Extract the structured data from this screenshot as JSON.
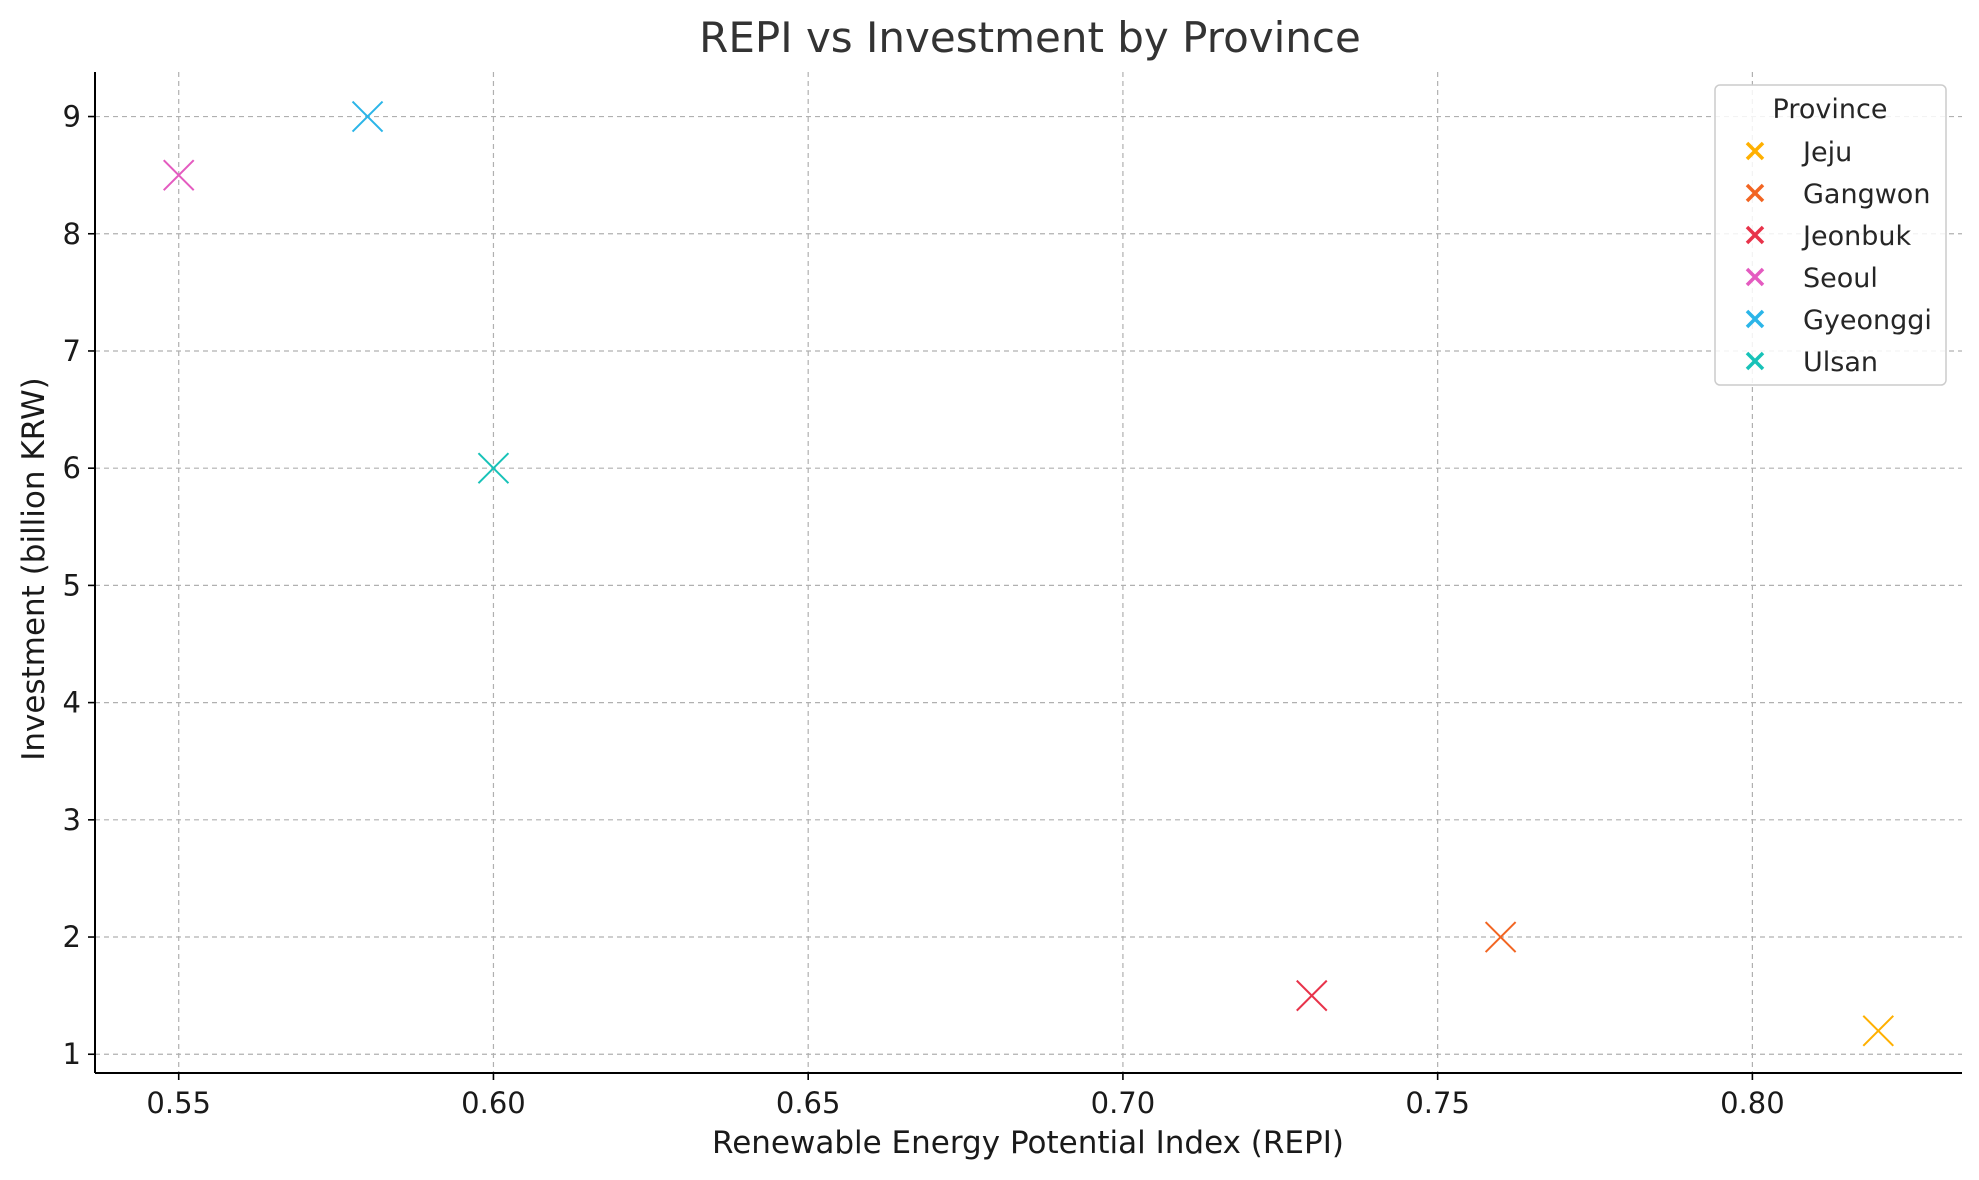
{
  "chart_data": {
    "type": "scatter",
    "title": "REPI vs Investment by Province",
    "xlabel": "Renewable Energy Potential Index (REPI)",
    "ylabel": "Investment (billion KRW)",
    "xlim": [
      0.5367,
      0.8333
    ],
    "ylim": [
      0.84,
      9.38
    ],
    "xticks": [
      "0.55",
      "0.60",
      "0.65",
      "0.70",
      "0.75",
      "0.80"
    ],
    "yticks": [
      "1",
      "2",
      "3",
      "4",
      "5",
      "6",
      "7",
      "8",
      "9"
    ],
    "grid": true,
    "marker": "x",
    "legend": {
      "title": "Province",
      "placement": "top-right"
    },
    "series": [
      {
        "name": "Jeju",
        "color": "#FFB000",
        "points": [
          {
            "x": 0.82,
            "y": 1.2
          }
        ]
      },
      {
        "name": "Gangwon",
        "color": "#F26522",
        "points": [
          {
            "x": 0.76,
            "y": 2.0
          }
        ]
      },
      {
        "name": "Jeonbuk",
        "color": "#E8334A",
        "points": [
          {
            "x": 0.73,
            "y": 1.5
          }
        ]
      },
      {
        "name": "Seoul",
        "color": "#E45BC0",
        "points": [
          {
            "x": 0.55,
            "y": 8.5
          }
        ]
      },
      {
        "name": "Gyeonggi",
        "color": "#2BB5E8",
        "points": [
          {
            "x": 0.58,
            "y": 9.0
          }
        ]
      },
      {
        "name": "Ulsan",
        "color": "#17C2B8",
        "points": [
          {
            "x": 0.6,
            "y": 6.0
          }
        ]
      }
    ]
  }
}
